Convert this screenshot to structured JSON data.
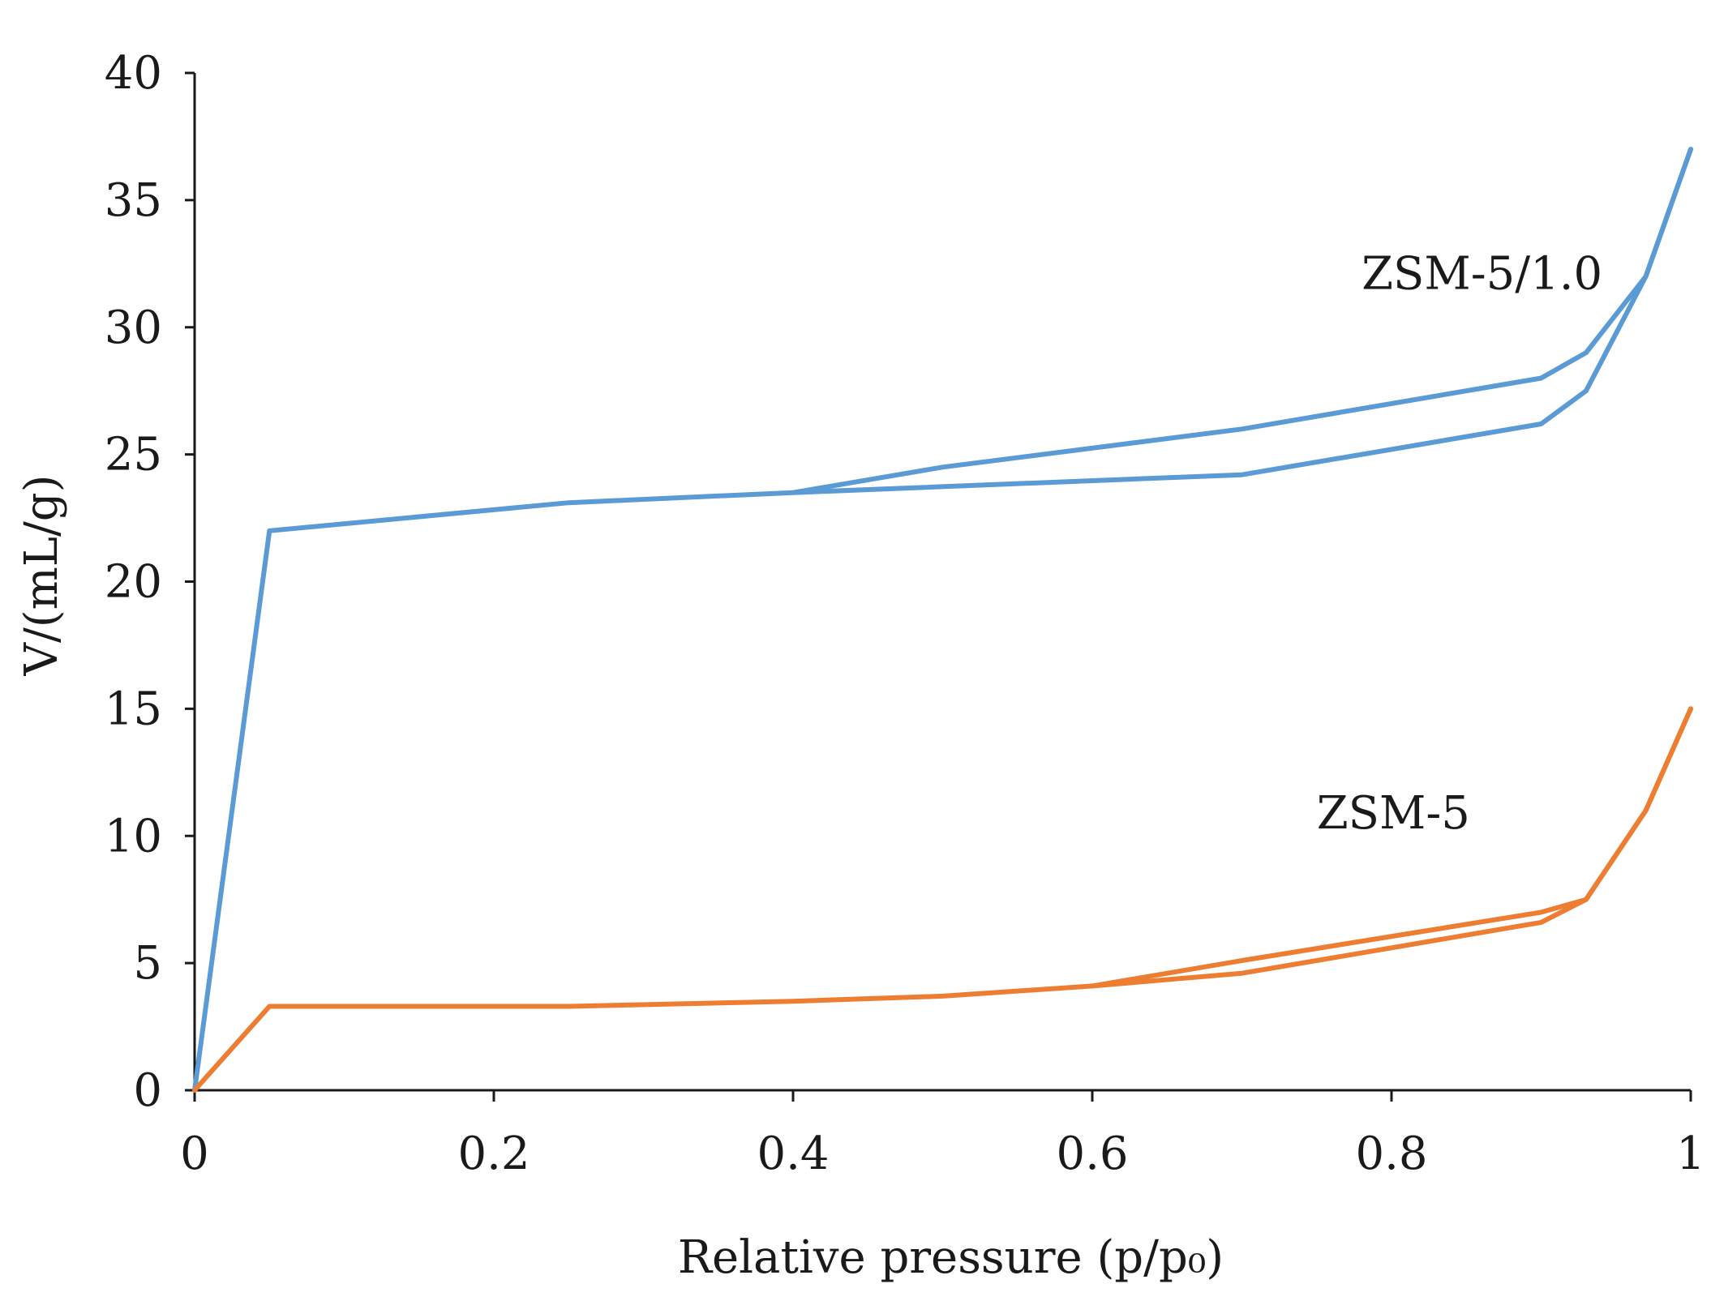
{
  "chart_data": {
    "type": "line",
    "title": "",
    "xlabel": "Relative pressure (p/p₀)",
    "ylabel": "V/(mL/g)",
    "xlim": [
      0,
      1
    ],
    "ylim": [
      0,
      40
    ],
    "x_ticks": [
      0,
      0.2,
      0.4,
      0.6,
      0.8,
      1
    ],
    "x_tick_labels": [
      "0",
      "0.2",
      "0.4",
      "0.6",
      "0.8",
      "1"
    ],
    "y_ticks": [
      0,
      5,
      10,
      15,
      20,
      25,
      30,
      35,
      40
    ],
    "y_tick_labels": [
      "0",
      "5",
      "10",
      "15",
      "20",
      "25",
      "30",
      "35",
      "40"
    ],
    "grid": false,
    "series": [
      {
        "name": "ZSM-5/1.0",
        "color": "#5B9BD5",
        "adsorption": {
          "x": [
            0,
            0.05,
            0.25,
            0.4,
            0.7,
            0.9,
            0.93,
            0.97,
            1.0
          ],
          "y": [
            0,
            22,
            23.1,
            23.5,
            24.2,
            26.2,
            27.5,
            32,
            37
          ]
        },
        "desorption": {
          "x": [
            1.0,
            0.97,
            0.93,
            0.9,
            0.7,
            0.5,
            0.4
          ],
          "y": [
            37,
            32,
            29,
            28,
            26,
            24.5,
            23.5
          ]
        }
      },
      {
        "name": "ZSM-5",
        "color": "#ED7D31",
        "adsorption": {
          "x": [
            0,
            0.05,
            0.25,
            0.4,
            0.5,
            0.6,
            0.7,
            0.9,
            0.93,
            0.97,
            1.0
          ],
          "y": [
            0,
            3.3,
            3.3,
            3.5,
            3.7,
            4.1,
            4.6,
            6.6,
            7.5,
            11,
            15
          ]
        },
        "desorption": {
          "x": [
            1.0,
            0.97,
            0.93,
            0.9,
            0.7,
            0.6
          ],
          "y": [
            15,
            11,
            7.5,
            7,
            5.1,
            4.1
          ]
        }
      }
    ],
    "annotations": [
      {
        "text": "ZSM-5/1.0",
        "x": 0.78,
        "y": 31.5
      },
      {
        "text": "ZSM-5",
        "x": 0.75,
        "y": 10.3
      }
    ]
  }
}
